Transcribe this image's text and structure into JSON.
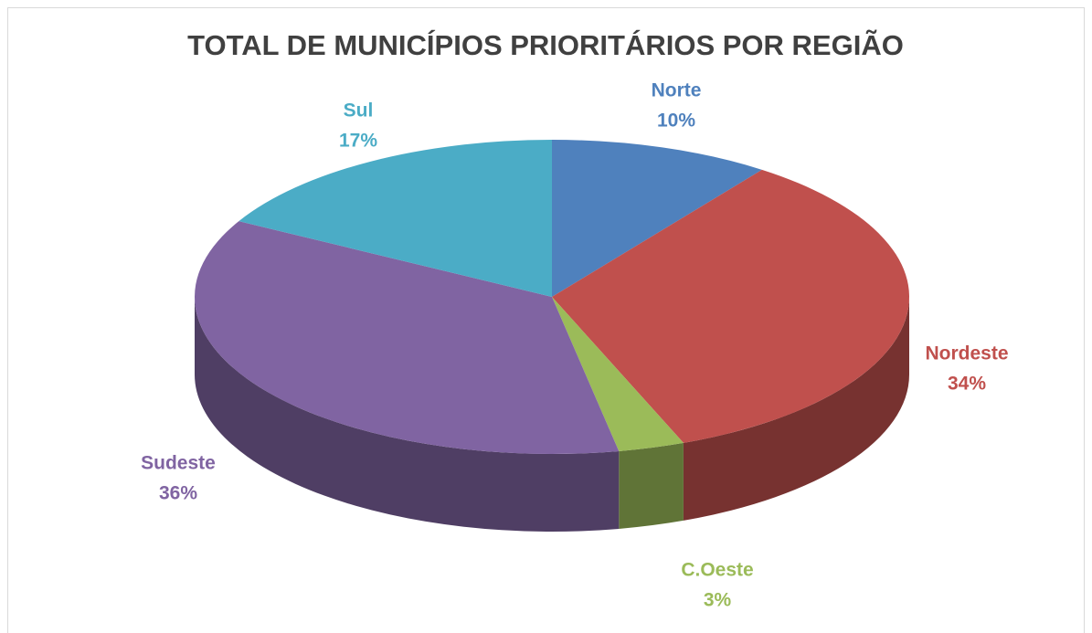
{
  "chart_data": {
    "type": "pie",
    "title": "TOTAL DE MUNICÍPIOS PRIORITÁRIOS POR REGIÃO",
    "categories": [
      "Norte",
      "Nordeste",
      "C.Oeste",
      "Sudeste",
      "Sul"
    ],
    "values": [
      10,
      34,
      3,
      36,
      17
    ],
    "value_labels": [
      "10%",
      "34%",
      "3%",
      "36%",
      "17%"
    ],
    "colors": [
      "#4f81bd",
      "#c0504d",
      "#9bbb59",
      "#8064a2",
      "#4bacc6"
    ]
  }
}
